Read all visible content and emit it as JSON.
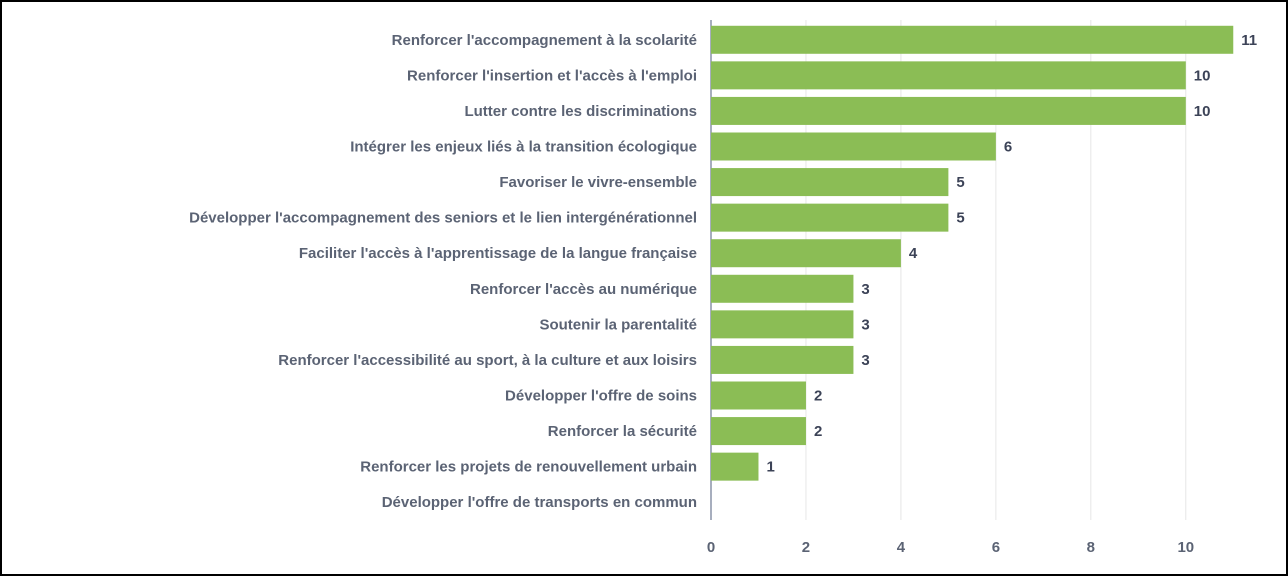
{
  "chart_data": {
    "type": "bar",
    "orientation": "horizontal",
    "categories": [
      "Renforcer l'accompagnement à la scolarité",
      "Renforcer l'insertion et l'accès à l'emploi",
      "Lutter contre les discriminations",
      "Intégrer les enjeux liés à la transition écologique",
      "Favoriser le vivre-ensemble",
      "Développer l'accompagnement des seniors et le lien intergénérationnel",
      "Faciliter l'accès à l'apprentissage de la langue française",
      "Renforcer l'accès au numérique",
      "Soutenir la parentalité",
      "Renforcer l'accessibilité au sport, à la culture et aux loisirs",
      "Développer l'offre de soins",
      "Renforcer la sécurité",
      "Renforcer les projets de renouvellement urbain",
      "Développer l'offre de transports en commun"
    ],
    "values": [
      11,
      10,
      10,
      6,
      5,
      5,
      4,
      3,
      3,
      3,
      2,
      2,
      1,
      0
    ],
    "color": "#8bbd55",
    "xlim": [
      0,
      11.5
    ],
    "xticks": [
      0,
      2,
      4,
      6,
      8,
      10
    ],
    "grid": true
  }
}
